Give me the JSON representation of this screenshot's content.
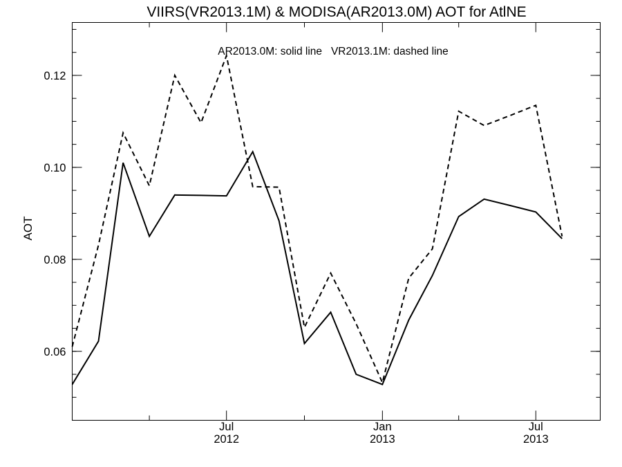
{
  "chart_data": {
    "type": "line",
    "title": "VIIRS(VR2013.1M) & MODISA(AR2013.0M)  AOT for AtlNE",
    "annotation": "AR2013.0M: solid line   VR2013.1M: dashed line",
    "xlabel": "",
    "ylabel": "AOT",
    "ylim": [
      0.045,
      0.1315
    ],
    "y_ticks": [
      0.06,
      0.08,
      0.1,
      0.12
    ],
    "y_tick_labels": [
      "0.06",
      "0.08",
      "0.10",
      "0.12"
    ],
    "y_minor_step": 0.005,
    "xlim": [
      "2012-01-01",
      "2013-09-15"
    ],
    "x_major_ticks": [
      {
        "date": "2012-07-01",
        "label_top": "Jul",
        "label_bottom": "2012"
      },
      {
        "date": "2013-01-01",
        "label_top": "Jan",
        "label_bottom": "2013"
      },
      {
        "date": "2013-07-01",
        "label_top": "Jul",
        "label_bottom": "2013"
      }
    ],
    "x_minor_ticks": [
      "2012-04-01",
      "2012-10-01",
      "2013-04-01"
    ],
    "grid": false,
    "x": [
      "2012-01-01",
      "2012-02-01",
      "2012-03-01",
      "2012-04-01",
      "2012-05-01",
      "2012-06-01",
      "2012-07-01",
      "2012-08-01",
      "2012-09-01",
      "2012-10-01",
      "2012-11-01",
      "2012-12-01",
      "2013-01-01",
      "2013-02-01",
      "2013-03-01",
      "2013-04-01",
      "2013-05-01",
      "2013-06-01",
      "2013-07-01",
      "2013-08-01"
    ],
    "series": [
      {
        "name": "AR2013.0M",
        "style": "solid",
        "color": "#000000",
        "values": [
          0.0528,
          0.0622,
          0.101,
          0.085,
          0.094,
          0.0939,
          0.0938,
          0.1034,
          0.0884,
          0.0617,
          0.0685,
          0.055,
          0.0528,
          0.0668,
          0.0765,
          0.0893,
          0.0931,
          0.0917,
          0.0903,
          0.0845
        ]
      },
      {
        "name": "VR2013.1M",
        "style": "dashed",
        "color": "#000000",
        "values": [
          0.061,
          0.0831,
          0.1075,
          0.096,
          0.12,
          0.1097,
          0.1243,
          0.0958,
          0.0957,
          0.0652,
          0.077,
          0.066,
          0.0532,
          0.0759,
          0.0823,
          0.1122,
          0.1091,
          0.1113,
          0.1135,
          0.085
        ]
      }
    ]
  }
}
